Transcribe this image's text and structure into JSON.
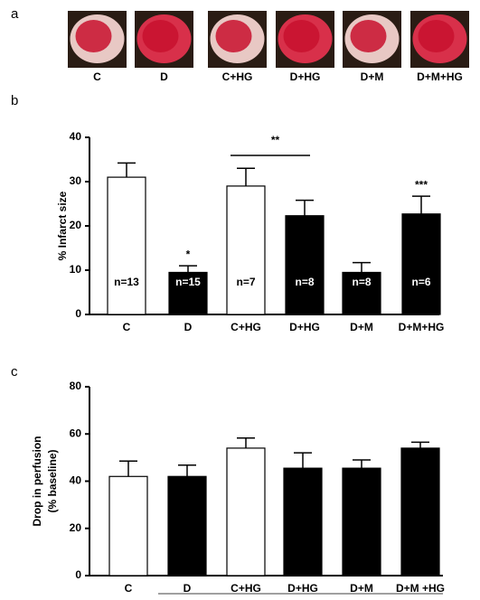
{
  "panel_labels": [
    "a",
    "b",
    "c"
  ],
  "images": {
    "labels": [
      "C",
      "D",
      "C+HG",
      "D+HG",
      "D+M",
      "D+M+HG"
    ]
  },
  "chart_data": [
    {
      "type": "bar",
      "y_label": "% Infarct size",
      "categories": [
        "C",
        "D",
        "C+HG",
        "D+HG",
        "D+M",
        "D+M+HG"
      ],
      "values": [
        31,
        9.5,
        29,
        22.3,
        9.5,
        22.7
      ],
      "errors": [
        3.2,
        1.5,
        4,
        3.5,
        2.2,
        4
      ],
      "colors": [
        "#ffffff",
        "#000000",
        "#ffffff",
        "#000000",
        "#000000",
        "#000000"
      ],
      "sample_sizes": [
        "n=13",
        "n=15",
        "n=7",
        "n=8",
        "n=8",
        "n=6"
      ],
      "significance": [
        null,
        "*",
        null,
        null,
        null,
        "***"
      ],
      "bracket_label": "**",
      "ylim": [
        0,
        40
      ],
      "yticks": [
        0,
        10,
        20,
        30,
        40
      ]
    },
    {
      "type": "bar",
      "y_label": "Drop in perfusion",
      "y_sublabel": "(% baseline)",
      "categories": [
        "C",
        "D",
        "C+HG",
        "D+HG",
        "D+M",
        "D+M +HG"
      ],
      "values": [
        42,
        42,
        54,
        45.5,
        45.5,
        54
      ],
      "errors": [
        6.5,
        4.8,
        4.3,
        6.5,
        3.5,
        2.5
      ],
      "colors": [
        "#ffffff",
        "#000000",
        "#ffffff",
        "#000000",
        "#000000",
        "#000000"
      ],
      "ylim": [
        0,
        80
      ],
      "yticks": [
        0,
        20,
        40,
        60,
        80
      ]
    }
  ]
}
